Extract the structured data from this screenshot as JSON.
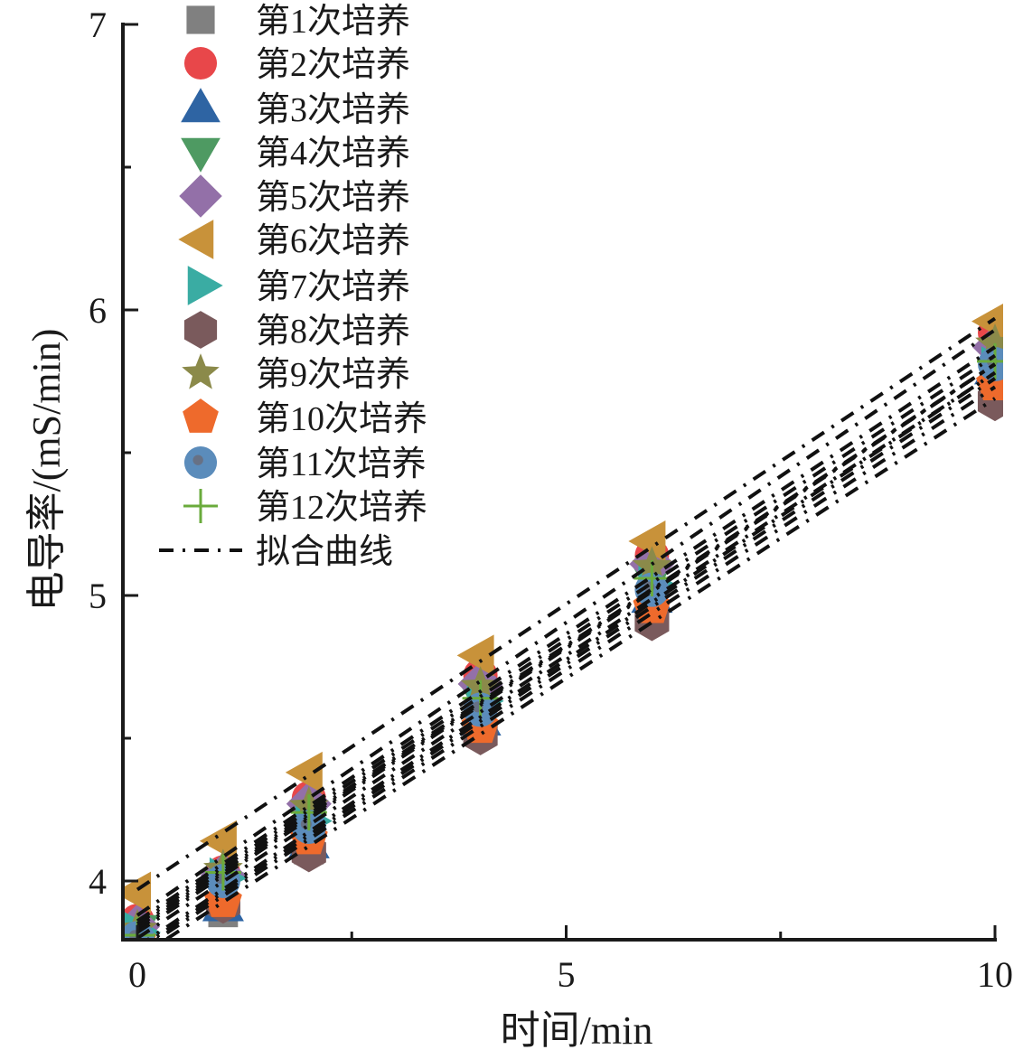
{
  "chart_data": {
    "type": "scatter",
    "title": "",
    "xlabel": "时间/min",
    "ylabel": "电导率/(mS/min)",
    "xlim": [
      -0.15,
      10
    ],
    "ylim": [
      3.795,
      7
    ],
    "x_ticks": [
      0,
      5,
      10
    ],
    "x_tick_labels": [
      "0",
      "5",
      "10"
    ],
    "x_minor_ticks": [
      2.5,
      7.5
    ],
    "y_ticks": [
      4,
      5,
      6,
      7
    ],
    "y_tick_labels": [
      "4",
      "5",
      "6",
      "7"
    ],
    "y_minor_ticks": [
      4.5,
      5.5,
      6.5
    ],
    "grid": false,
    "legend_position": "top-left",
    "x": [
      0,
      1,
      2,
      4,
      6,
      10
    ],
    "series": [
      {
        "name": "第1次培养",
        "marker": "square",
        "color": "#808080",
        "values": [
          3.78,
          3.89,
          4.11,
          4.54,
          4.98,
          5.78
        ]
      },
      {
        "name": "第2次培养",
        "marker": "circle",
        "color": "#e8474a",
        "values": [
          3.86,
          4.03,
          4.29,
          4.72,
          5.14,
          5.92
        ]
      },
      {
        "name": "第3次培养",
        "marker": "triangle-up",
        "color": "#2e64a3",
        "values": [
          3.79,
          3.91,
          4.13,
          4.56,
          4.99,
          5.79
        ]
      },
      {
        "name": "第4次培养",
        "marker": "triangle-down",
        "color": "#4e9a62",
        "values": [
          3.83,
          3.98,
          4.22,
          4.64,
          5.06,
          5.83
        ]
      },
      {
        "name": "第5次培养",
        "marker": "diamond",
        "color": "#9370a8",
        "values": [
          3.84,
          4.02,
          4.27,
          4.69,
          5.11,
          5.87
        ]
      },
      {
        "name": "第6次培养",
        "marker": "triangle-left",
        "color": "#c8923a",
        "values": [
          3.96,
          4.14,
          4.38,
          4.79,
          5.19,
          5.96
        ]
      },
      {
        "name": "第7次培养",
        "marker": "triangle-right",
        "color": "#3aaca3",
        "values": [
          3.82,
          4.01,
          4.21,
          4.63,
          5.04,
          5.8
        ]
      },
      {
        "name": "第8次培养",
        "marker": "hexagon",
        "color": "#7a5a5c",
        "values": [
          3.77,
          3.92,
          4.1,
          4.51,
          4.91,
          5.68
        ]
      },
      {
        "name": "第9次培养",
        "marker": "star",
        "color": "#8b8a4a",
        "values": [
          3.83,
          4.04,
          4.26,
          4.68,
          5.1,
          5.88
        ]
      },
      {
        "name": "第10次培养",
        "marker": "pentagon",
        "color": "#ee6a2c",
        "values": [
          3.79,
          3.93,
          4.15,
          4.54,
          4.96,
          5.74
        ]
      },
      {
        "name": "第11次培养",
        "marker": "circle-dot",
        "color": "#5b8cbb",
        "values": [
          3.8,
          4.0,
          4.19,
          4.6,
          5.02,
          5.81
        ]
      },
      {
        "name": "第12次培养",
        "marker": "plus",
        "color": "#6aab3c",
        "values": [
          3.81,
          4.03,
          4.24,
          4.64,
          5.06,
          5.82
        ]
      }
    ],
    "fit_lines": {
      "name": "拟合曲线",
      "style": "dash-dot",
      "color": "#111111",
      "x_range": [
        0,
        10
      ],
      "lines": [
        {
          "intercept": 3.97,
          "slope": 0.2
        },
        {
          "intercept": 3.88,
          "slope": 0.205
        },
        {
          "intercept": 3.86,
          "slope": 0.201
        },
        {
          "intercept": 3.85,
          "slope": 0.199
        },
        {
          "intercept": 3.84,
          "slope": 0.197
        },
        {
          "intercept": 3.83,
          "slope": 0.198
        },
        {
          "intercept": 3.82,
          "slope": 0.199
        },
        {
          "intercept": 3.8,
          "slope": 0.198
        },
        {
          "intercept": 3.77,
          "slope": 0.201
        },
        {
          "intercept": 3.76,
          "slope": 0.2
        },
        {
          "intercept": 3.75,
          "slope": 0.198
        },
        {
          "intercept": 3.73,
          "slope": 0.196
        }
      ]
    }
  }
}
